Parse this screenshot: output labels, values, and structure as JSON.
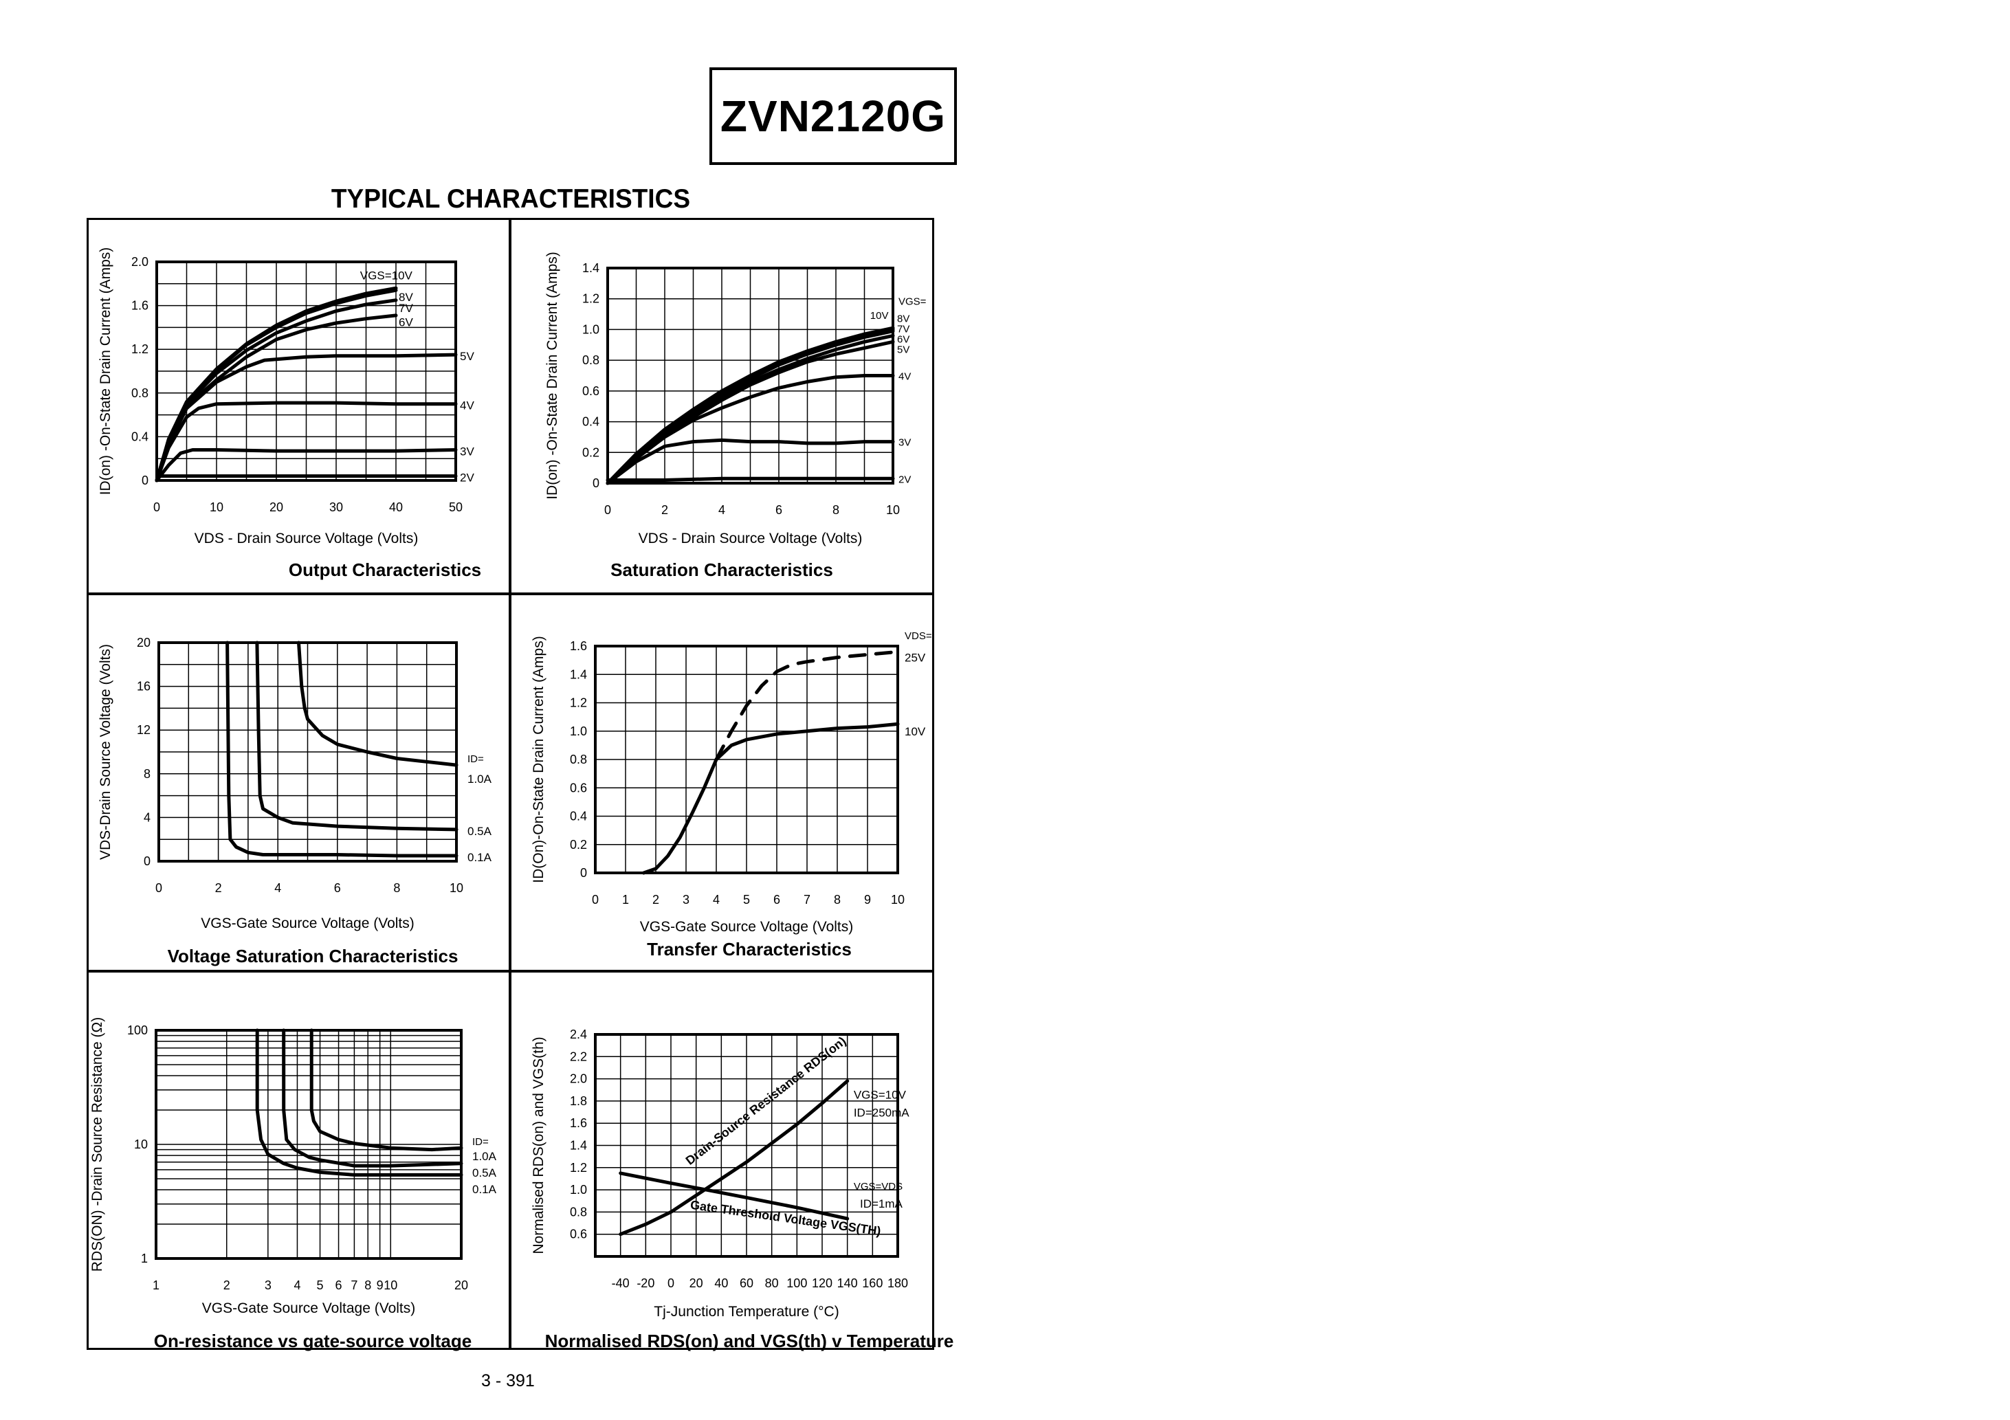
{
  "header": {
    "part_number": "ZVN2120G",
    "section_title": "TYPICAL CHARACTERISTICS",
    "page_number": "3 - 391"
  },
  "chart_data": [
    {
      "id": "output",
      "type": "line",
      "title": "Output Characteristics",
      "xlabel": "VDS - Drain Source Voltage (Volts)",
      "ylabel": "ID(on) -On-State Drain Current (Amps)",
      "xlim": [
        0,
        50
      ],
      "ylim": [
        0,
        2.0
      ],
      "xticks": [
        "0",
        "10",
        "20",
        "30",
        "40",
        "50"
      ],
      "yticks": [
        "0",
        "0.4",
        "0.8",
        "1.2",
        "1.6",
        "2.0"
      ],
      "grid": {
        "x_divisions": 10,
        "y_divisions": 10
      },
      "legend_header": "VGS=",
      "series": [
        {
          "name": "10V",
          "label": "VGS=10V",
          "x": [
            0,
            2,
            5,
            10,
            15,
            20,
            25,
            30,
            35,
            40
          ],
          "y": [
            0,
            0.38,
            0.72,
            1.02,
            1.25,
            1.42,
            1.55,
            1.64,
            1.71,
            1.76
          ]
        },
        {
          "name": "8V",
          "label": "8V",
          "x": [
            0,
            2,
            5,
            10,
            15,
            20,
            25,
            30,
            35,
            40
          ],
          "y": [
            0,
            0.37,
            0.71,
            1.01,
            1.24,
            1.4,
            1.53,
            1.62,
            1.69,
            1.74
          ]
        },
        {
          "name": "7V",
          "label": "7V",
          "x": [
            0,
            2,
            5,
            10,
            15,
            20,
            25,
            30,
            35,
            40
          ],
          "y": [
            0,
            0.36,
            0.7,
            0.98,
            1.19,
            1.35,
            1.46,
            1.55,
            1.61,
            1.65
          ]
        },
        {
          "name": "6V",
          "label": "6V",
          "x": [
            0,
            2,
            5,
            10,
            15,
            20,
            25,
            30,
            35,
            40
          ],
          "y": [
            0,
            0.35,
            0.68,
            0.92,
            1.13,
            1.29,
            1.38,
            1.44,
            1.48,
            1.51
          ]
        },
        {
          "name": "5V",
          "label": "5V",
          "x": [
            0,
            2,
            5,
            10,
            15,
            18,
            25,
            30,
            40,
            50
          ],
          "y": [
            0,
            0.33,
            0.66,
            0.9,
            1.04,
            1.1,
            1.13,
            1.14,
            1.14,
            1.15
          ]
        },
        {
          "name": "4V",
          "label": "4V",
          "x": [
            0,
            2,
            5,
            7,
            10,
            20,
            30,
            40,
            50
          ],
          "y": [
            0,
            0.3,
            0.58,
            0.66,
            0.7,
            0.71,
            0.71,
            0.7,
            0.7
          ]
        },
        {
          "name": "3V",
          "label": "3V",
          "x": [
            0,
            2,
            4,
            6,
            10,
            20,
            30,
            40,
            50
          ],
          "y": [
            0,
            0.14,
            0.25,
            0.28,
            0.28,
            0.27,
            0.27,
            0.27,
            0.28
          ]
        },
        {
          "name": "2V",
          "label": "2V",
          "x": [
            0,
            0.5,
            10,
            20,
            30,
            40,
            50
          ],
          "y": [
            0,
            0.04,
            0.04,
            0.04,
            0.04,
            0.04,
            0.04
          ]
        }
      ]
    },
    {
      "id": "saturation",
      "type": "line",
      "title": "Saturation Characteristics",
      "xlabel": "VDS - Drain Source Voltage (Volts)",
      "ylabel": "ID(on) -On-State Drain Current (Amps)",
      "xlim": [
        0,
        10
      ],
      "ylim": [
        0,
        1.4
      ],
      "xticks": [
        "0",
        "2",
        "4",
        "6",
        "8",
        "10"
      ],
      "yticks": [
        "0",
        "0.2",
        "0.4",
        "0.6",
        "0.8",
        "1.0",
        "1.2",
        "1.4"
      ],
      "grid": {
        "x_divisions": 10,
        "y_divisions": 7
      },
      "legend_header": "VGS=",
      "series": [
        {
          "name": "10V",
          "label": "10V",
          "x": [
            0,
            1,
            2,
            3,
            4,
            5,
            6,
            7,
            8,
            9,
            10
          ],
          "y": [
            0,
            0.19,
            0.35,
            0.48,
            0.6,
            0.7,
            0.79,
            0.86,
            0.92,
            0.97,
            1.01
          ]
        },
        {
          "name": "8V",
          "label": "8V",
          "x": [
            0,
            1,
            2,
            3,
            4,
            5,
            6,
            7,
            8,
            9,
            10
          ],
          "y": [
            0,
            0.19,
            0.34,
            0.47,
            0.59,
            0.69,
            0.78,
            0.85,
            0.91,
            0.96,
            1.0
          ]
        },
        {
          "name": "7V",
          "label": "7V",
          "x": [
            0,
            1,
            2,
            3,
            4,
            5,
            6,
            7,
            8,
            9,
            10
          ],
          "y": [
            0,
            0.18,
            0.34,
            0.46,
            0.58,
            0.68,
            0.77,
            0.84,
            0.9,
            0.95,
            0.99
          ]
        },
        {
          "name": "6V",
          "label": "6V",
          "x": [
            0,
            1,
            2,
            3,
            4,
            5,
            6,
            7,
            8,
            9,
            10
          ],
          "y": [
            0,
            0.18,
            0.33,
            0.45,
            0.56,
            0.66,
            0.74,
            0.81,
            0.87,
            0.92,
            0.96
          ]
        },
        {
          "name": "5V",
          "label": "5V",
          "x": [
            0,
            1,
            2,
            3,
            4,
            5,
            6,
            7,
            8,
            9,
            10
          ],
          "y": [
            0,
            0.17,
            0.32,
            0.43,
            0.54,
            0.64,
            0.72,
            0.79,
            0.84,
            0.88,
            0.92
          ]
        },
        {
          "name": "4V",
          "label": "4V",
          "x": [
            0,
            1,
            2,
            3,
            4,
            5,
            6,
            7,
            8,
            9,
            10
          ],
          "y": [
            0,
            0.16,
            0.3,
            0.41,
            0.49,
            0.56,
            0.62,
            0.66,
            0.69,
            0.7,
            0.7
          ]
        },
        {
          "name": "3V",
          "label": "3V",
          "x": [
            0,
            1,
            2,
            3,
            4,
            5,
            6,
            7,
            8,
            9,
            10
          ],
          "y": [
            0,
            0.14,
            0.24,
            0.27,
            0.28,
            0.27,
            0.27,
            0.26,
            0.26,
            0.27,
            0.27
          ]
        },
        {
          "name": "2V",
          "label": "2V",
          "x": [
            0,
            2,
            4,
            6,
            8,
            10
          ],
          "y": [
            0.02,
            0.02,
            0.03,
            0.03,
            0.03,
            0.03
          ]
        }
      ]
    },
    {
      "id": "voltage-saturation",
      "type": "line",
      "title": "Voltage Saturation Characteristics",
      "xlabel": "VGS-Gate Source Voltage  (Volts)",
      "ylabel": "VDS-Drain Source  Voltage (Volts)",
      "xlim": [
        0,
        10
      ],
      "ylim": [
        0,
        20
      ],
      "xticks": [
        "0",
        "2",
        "4",
        "6",
        "8",
        "10"
      ],
      "yticks": [
        "0",
        "4",
        "8",
        "12",
        "16",
        "20"
      ],
      "grid": {
        "x_divisions": 10,
        "y_divisions": 10
      },
      "legend_header": "ID=",
      "series": [
        {
          "name": "1.0A",
          "label": "1.0A",
          "x": [
            4.7,
            4.8,
            4.9,
            5.0,
            5.5,
            6.0,
            7.0,
            8.0,
            9.0,
            10.0
          ],
          "y": [
            20,
            16,
            14,
            13,
            11.5,
            10.7,
            10.0,
            9.4,
            9.1,
            8.8
          ]
        },
        {
          "name": "0.5A",
          "label": "0.5A",
          "x": [
            3.3,
            3.35,
            3.4,
            3.5,
            4.0,
            4.5,
            6.0,
            8.0,
            10.0
          ],
          "y": [
            20,
            12,
            6,
            4.8,
            4.0,
            3.5,
            3.2,
            3.0,
            2.9
          ]
        },
        {
          "name": "0.1A",
          "label": "0.1A",
          "x": [
            2.3,
            2.35,
            2.4,
            2.6,
            3.0,
            3.5,
            6.0,
            8.0,
            10.0
          ],
          "y": [
            20,
            6,
            2.0,
            1.3,
            0.8,
            0.6,
            0.6,
            0.5,
            0.5
          ]
        }
      ]
    },
    {
      "id": "transfer",
      "type": "line",
      "title": "Transfer Characteristics",
      "xlabel": "VGS-Gate Source Voltage (Volts)",
      "ylabel": "ID(On)-On-State Drain Current  (Amps)",
      "xlim": [
        0,
        10
      ],
      "ylim": [
        0,
        1.6
      ],
      "xticks": [
        "0",
        "1",
        "2",
        "3",
        "4",
        "5",
        "6",
        "7",
        "8",
        "9",
        "10"
      ],
      "yticks": [
        "0",
        "0.2",
        "0.4",
        "0.6",
        "0.8",
        "1.0",
        "1.2",
        "1.4",
        "1.6"
      ],
      "grid": {
        "x_divisions": 10,
        "y_divisions": 8
      },
      "legend_header": "VDS=",
      "series": [
        {
          "name": "25V",
          "label": "25V",
          "style": "dashed",
          "x": [
            4.0,
            4.5,
            5.0,
            5.5,
            6.0,
            6.5,
            7.0,
            8.0,
            9.0,
            10.0
          ],
          "y": [
            0.8,
            1.0,
            1.18,
            1.32,
            1.42,
            1.47,
            1.49,
            1.52,
            1.54,
            1.56
          ]
        },
        {
          "name": "10V",
          "label": "10V",
          "style": "solid",
          "x": [
            1.6,
            2.0,
            2.4,
            2.8,
            3.2,
            3.6,
            4.0,
            4.5,
            5.0,
            6.0,
            7.0,
            8.0,
            9.0,
            10.0
          ],
          "y": [
            0,
            0.03,
            0.12,
            0.25,
            0.42,
            0.6,
            0.8,
            0.9,
            0.94,
            0.98,
            1.0,
            1.02,
            1.03,
            1.05
          ]
        }
      ]
    },
    {
      "id": "on-resistance",
      "type": "line",
      "title": "On-resistance vs gate-source voltage",
      "xlabel": "VGS-Gate Source Voltage (Volts)",
      "ylabel": "RDS(ON) -Drain Source Resistance (Ω)",
      "xscale": "log",
      "yscale": "log",
      "xlim": [
        1,
        20
      ],
      "ylim": [
        1,
        100
      ],
      "xticks": [
        "1",
        "2",
        "3",
        "4",
        "5",
        "6",
        "7",
        "8",
        "9",
        "10",
        "20"
      ],
      "yticks": [
        "1",
        "10",
        "100"
      ],
      "legend_header": "ID=",
      "series": [
        {
          "name": "1.0A",
          "label": "1.0A",
          "x": [
            4.6,
            4.6,
            4.7,
            5.0,
            6.0,
            7.0,
            10.0,
            15.0,
            20.0
          ],
          "y": [
            100,
            20,
            16,
            13,
            11,
            10.2,
            9.3,
            9.0,
            9.3
          ]
        },
        {
          "name": "0.5A",
          "label": "0.5A",
          "x": [
            3.5,
            3.5,
            3.6,
            3.9,
            4.5,
            5.0,
            7.0,
            10.0,
            20.0
          ],
          "y": [
            100,
            20,
            11,
            9,
            7.7,
            7.3,
            6.5,
            6.5,
            6.8
          ]
        },
        {
          "name": "0.1A",
          "label": "0.1A",
          "x": [
            2.7,
            2.7,
            2.8,
            3.0,
            3.5,
            4.0,
            5.0,
            7.0,
            10.0,
            20.0
          ],
          "y": [
            100,
            20,
            11,
            8.2,
            6.8,
            6.2,
            5.7,
            5.4,
            5.4,
            5.4
          ]
        }
      ]
    },
    {
      "id": "temperature",
      "type": "line",
      "title": "Normalised RDS(on) and VGS(th) v Temperature",
      "xlabel": "Tj-Junction Temperature (°C)",
      "ylabel": "Normalised RDS(on) and VGS(th)",
      "xlim": [
        -60,
        180
      ],
      "ylim": [
        0.4,
        2.4
      ],
      "xticks": [
        "-40",
        "-20",
        "0",
        "20",
        "40",
        "60",
        "80",
        "100",
        "120",
        "140",
        "160",
        "180"
      ],
      "yticks": [
        "0.6",
        "0.8",
        "1.0",
        "1.2",
        "1.4",
        "1.6",
        "1.8",
        "2.0",
        "2.2",
        "2.4"
      ],
      "grid": {
        "x_divisions": 12,
        "y_divisions": 10
      },
      "series": [
        {
          "name": "Drain-Source Resistance RDS(on)",
          "condition": [
            "VGS=10V",
            "ID=250mA"
          ],
          "x": [
            -40,
            -20,
            0,
            20,
            40,
            60,
            80,
            100,
            120,
            140
          ],
          "y": [
            0.6,
            0.69,
            0.8,
            0.95,
            1.1,
            1.25,
            1.42,
            1.59,
            1.78,
            1.98
          ]
        },
        {
          "name": "Gate Threshold Voltage VGS(TH)",
          "condition": [
            "VGS=VDS",
            "ID=1mA"
          ],
          "x": [
            -40,
            0,
            28,
            60,
            100,
            140
          ],
          "y": [
            1.15,
            1.06,
            1.0,
            0.93,
            0.84,
            0.74
          ]
        }
      ]
    }
  ]
}
